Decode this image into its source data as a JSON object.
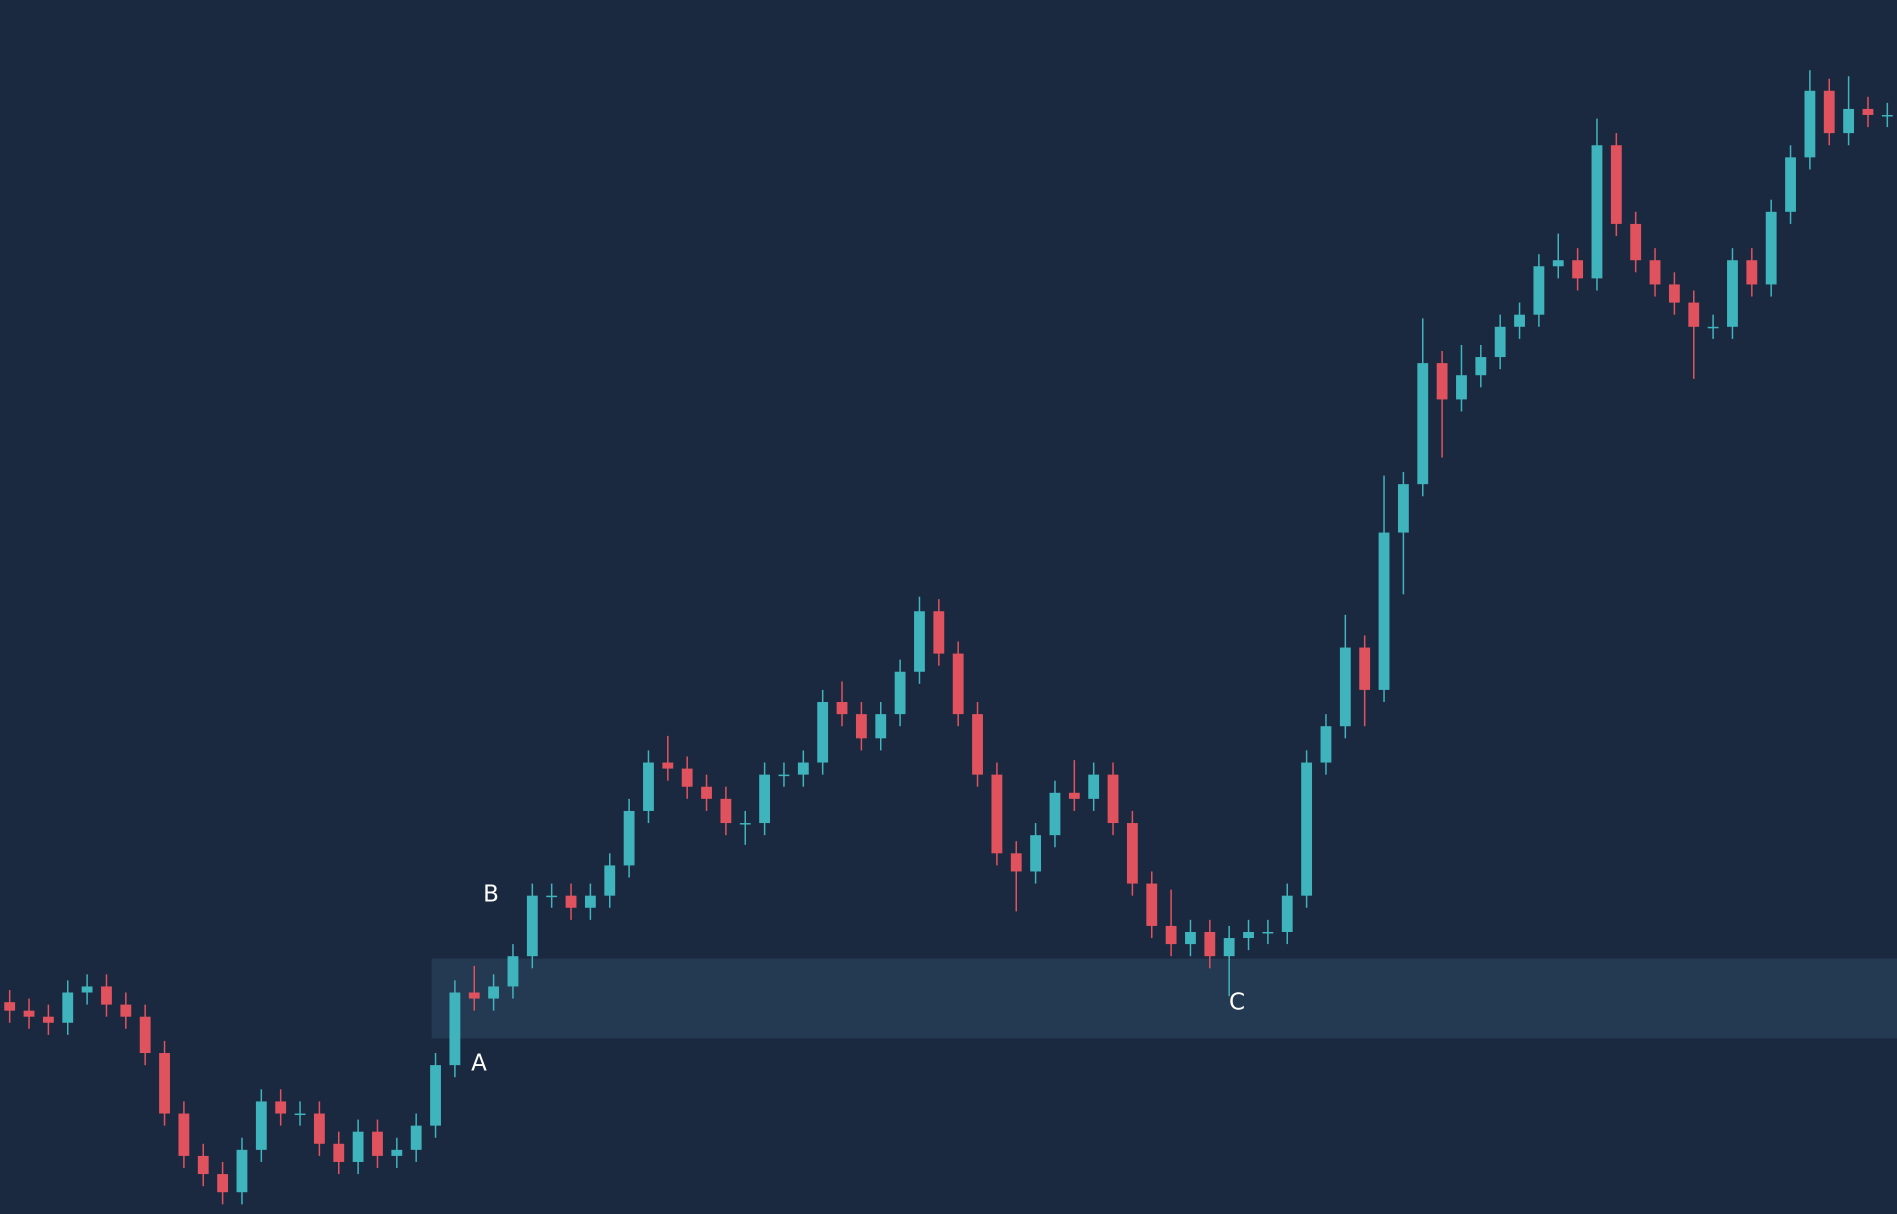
{
  "chart_data": {
    "type": "candlestick",
    "ylim": [
      0,
      1003
    ],
    "up_color": "#3fb4bd",
    "down_color": "#e0525e",
    "zone": {
      "low": 145,
      "high": 211,
      "from_index": 22,
      "color": "#243a52"
    },
    "annotations": [
      "A",
      "B",
      "C"
    ],
    "open": [
      175,
      168,
      163,
      158,
      183,
      188,
      173,
      163,
      133,
      83,
      48,
      33,
      18,
      53,
      93,
      83,
      83,
      58,
      43,
      68,
      48,
      53,
      73,
      123,
      183,
      178,
      188,
      213,
      263,
      263,
      253,
      263,
      288,
      333,
      373,
      368,
      353,
      343,
      323,
      323,
      363,
      363,
      373,
      423,
      413,
      393,
      413,
      448,
      498,
      463,
      413,
      363,
      298,
      283,
      313,
      348,
      343,
      363,
      323,
      273,
      238,
      223,
      233,
      213,
      228,
      233,
      233,
      263,
      373,
      403,
      468,
      433,
      563,
      603,
      703,
      673,
      693,
      708,
      733,
      743,
      783,
      788,
      773,
      883,
      818,
      788,
      768,
      753,
      733,
      733,
      788,
      768,
      828,
      873,
      928,
      893,
      913,
      908
    ],
    "high": [
      185,
      178,
      173,
      193,
      198,
      198,
      183,
      173,
      143,
      93,
      58,
      43,
      63,
      103,
      103,
      93,
      93,
      68,
      78,
      78,
      63,
      83,
      133,
      193,
      205,
      198,
      223,
      273,
      273,
      273,
      273,
      298,
      343,
      383,
      395,
      378,
      363,
      353,
      333,
      373,
      373,
      383,
      433,
      440,
      423,
      423,
      458,
      510,
      508,
      473,
      423,
      373,
      308,
      323,
      358,
      375,
      373,
      373,
      333,
      283,
      268,
      243,
      243,
      238,
      243,
      243,
      273,
      383,
      413,
      495,
      478,
      610,
      613,
      740,
      713,
      718,
      718,
      743,
      753,
      793,
      810,
      798,
      905,
      893,
      828,
      798,
      778,
      763,
      743,
      798,
      798,
      838,
      883,
      945,
      938,
      940,
      923,
      918
    ],
    "low": [
      158,
      153,
      148,
      148,
      173,
      163,
      153,
      123,
      73,
      38,
      23,
      8,
      8,
      43,
      73,
      73,
      48,
      33,
      33,
      38,
      38,
      43,
      63,
      113,
      168,
      168,
      178,
      203,
      253,
      243,
      243,
      253,
      278,
      323,
      358,
      343,
      333,
      313,
      305,
      313,
      353,
      353,
      363,
      403,
      383,
      383,
      403,
      438,
      453,
      403,
      353,
      288,
      250,
      273,
      303,
      333,
      333,
      313,
      263,
      228,
      213,
      213,
      203,
      180,
      218,
      223,
      223,
      253,
      363,
      393,
      403,
      423,
      512,
      593,
      625,
      663,
      683,
      698,
      723,
      733,
      773,
      763,
      763,
      808,
      778,
      758,
      743,
      690,
      723,
      723,
      758,
      758,
      818,
      863,
      883,
      883,
      898,
      898
    ],
    "close": [
      168,
      163,
      158,
      183,
      188,
      173,
      163,
      133,
      83,
      48,
      33,
      18,
      53,
      93,
      83,
      83,
      58,
      43,
      68,
      48,
      53,
      73,
      123,
      183,
      178,
      188,
      213,
      263,
      263,
      253,
      263,
      288,
      333,
      373,
      368,
      353,
      343,
      323,
      323,
      363,
      363,
      373,
      423,
      413,
      393,
      413,
      448,
      498,
      463,
      413,
      363,
      298,
      283,
      313,
      348,
      343,
      363,
      323,
      273,
      238,
      223,
      233,
      213,
      228,
      233,
      233,
      263,
      373,
      403,
      468,
      433,
      563,
      603,
      703,
      673,
      693,
      708,
      733,
      743,
      783,
      788,
      773,
      883,
      818,
      788,
      768,
      753,
      733,
      733,
      788,
      768,
      828,
      873,
      928,
      893,
      913,
      908,
      908
    ]
  }
}
